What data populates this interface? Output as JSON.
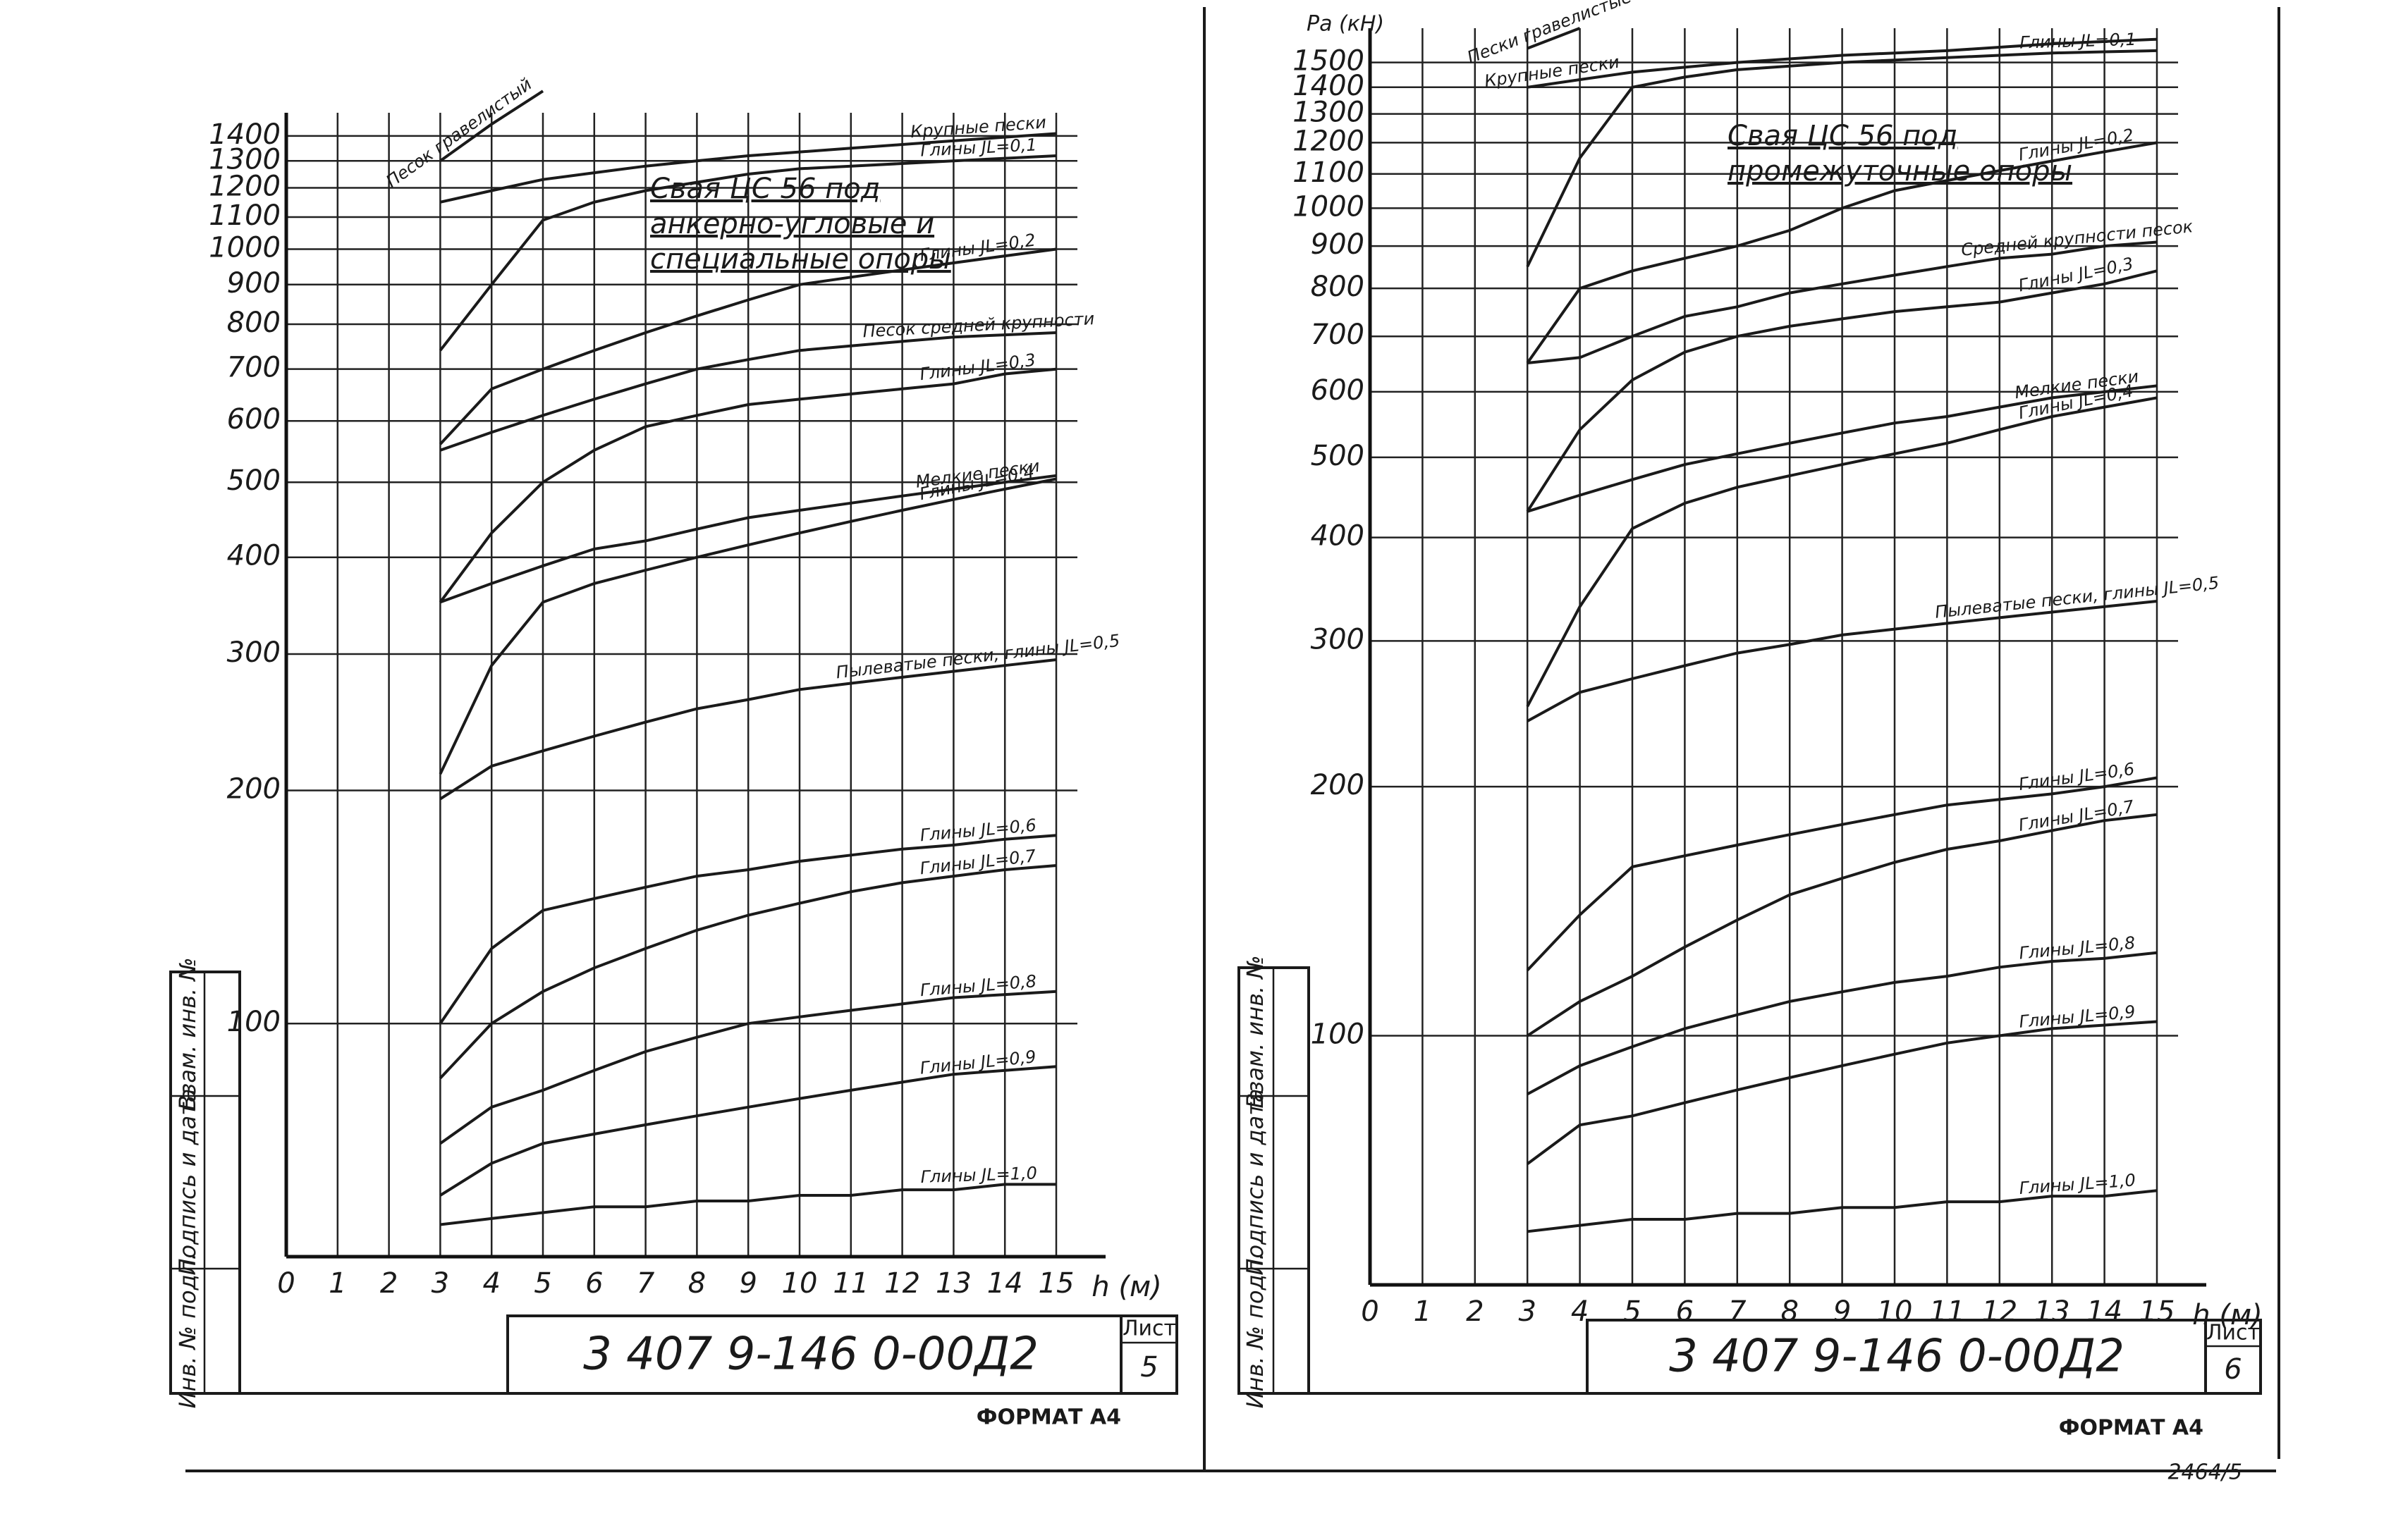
{
  "chart_data": [
    {
      "type": "line",
      "title": [
        "Свая ЦС 56 под",
        "анкерно-угловые и",
        "специальные опоры"
      ],
      "x_label": "h (м)",
      "x": [
        3,
        4,
        5,
        6,
        7,
        8,
        9,
        10,
        11,
        12,
        13,
        14,
        15
      ],
      "xlim": [
        0,
        15
      ],
      "xticks": [
        0,
        1,
        2,
        3,
        4,
        5,
        6,
        7,
        8,
        9,
        10,
        11,
        12,
        13,
        14,
        15
      ],
      "ylim": [
        50,
        1500
      ],
      "yticks": [
        100,
        200,
        300,
        400,
        500,
        600,
        700,
        800,
        900,
        1000,
        1100,
        1200,
        1300,
        1400
      ],
      "log_y": true,
      "grid": true,
      "color": "#1a1a1a",
      "series": [
        {
          "name": "Песок гравелистый",
          "values": [
            1300,
            1450,
            1600,
            null,
            null,
            null,
            null,
            null,
            null,
            null,
            null,
            null,
            null
          ]
        },
        {
          "name": "Крупные пески",
          "values": [
            1150,
            1190,
            1230,
            1255,
            1280,
            1300,
            1320,
            1335,
            1350,
            1365,
            1380,
            1395,
            1410
          ]
        },
        {
          "name": "Глины JL=0,1",
          "values": [
            740,
            900,
            1090,
            1150,
            1190,
            1220,
            1250,
            1270,
            1280,
            1290,
            1300,
            1310,
            1320
          ]
        },
        {
          "name": "Глины JL=0,2",
          "values": [
            560,
            660,
            700,
            740,
            780,
            820,
            860,
            900,
            920,
            940,
            960,
            980,
            1000
          ]
        },
        {
          "name": "Песок средней крупности",
          "values": [
            550,
            580,
            610,
            640,
            670,
            700,
            720,
            740,
            750,
            760,
            770,
            775,
            780
          ]
        },
        {
          "name": "Глины JL=0,3",
          "values": [
            350,
            430,
            500,
            550,
            590,
            610,
            630,
            640,
            650,
            660,
            670,
            690,
            700
          ]
        },
        {
          "name": "Мелкие пески",
          "values": [
            350,
            370,
            390,
            410,
            420,
            435,
            450,
            460,
            470,
            480,
            490,
            500,
            510
          ]
        },
        {
          "name": "Глины JL=0,4",
          "values": [
            210,
            290,
            350,
            370,
            385,
            400,
            415,
            430,
            445,
            460,
            475,
            490,
            505
          ]
        },
        {
          "name": "Пылеватые пески, глины JL=0,5",
          "values": [
            195,
            215,
            225,
            235,
            245,
            255,
            262,
            270,
            275,
            280,
            285,
            290,
            295
          ]
        },
        {
          "name": "Глины JL=0,6",
          "values": [
            100,
            125,
            140,
            145,
            150,
            155,
            158,
            162,
            165,
            168,
            170,
            173,
            175
          ]
        },
        {
          "name": "Глины JL=0,7",
          "values": [
            85,
            100,
            110,
            118,
            125,
            132,
            138,
            143,
            148,
            152,
            155,
            158,
            160
          ]
        },
        {
          "name": "Глины JL=0,8",
          "values": [
            70,
            78,
            82,
            87,
            92,
            96,
            100,
            102,
            104,
            106,
            108,
            109,
            110
          ]
        },
        {
          "name": "Глины JL=0,9",
          "values": [
            60,
            66,
            70,
            72,
            74,
            76,
            78,
            80,
            82,
            84,
            86,
            87,
            88
          ]
        },
        {
          "name": "Глины JL=1,0",
          "values": [
            55,
            56,
            57,
            58,
            58,
            59,
            59,
            60,
            60,
            61,
            61,
            62,
            62
          ]
        }
      ]
    },
    {
      "type": "line",
      "title": [
        "Свая ЦС 56 под",
        "промежуточные опоры"
      ],
      "y_label": "Pa (кН)",
      "x_label": "h (м)",
      "x": [
        3,
        4,
        5,
        6,
        7,
        8,
        9,
        10,
        11,
        12,
        13,
        14,
        15
      ],
      "xlim": [
        0,
        15
      ],
      "xticks": [
        0,
        1,
        2,
        3,
        4,
        5,
        6,
        7,
        8,
        9,
        10,
        11,
        12,
        13,
        14,
        15
      ],
      "ylim": [
        50,
        1650
      ],
      "yticks": [
        100,
        200,
        300,
        400,
        500,
        600,
        700,
        800,
        900,
        1000,
        1100,
        1200,
        1300,
        1400,
        1500
      ],
      "log_y": true,
      "grid": true,
      "color": "#1a1a1a",
      "series": [
        {
          "name": "Пески гравелистые",
          "values": [
            1560,
            1650,
            null,
            null,
            null,
            null,
            null,
            null,
            null,
            null,
            null,
            null,
            null
          ]
        },
        {
          "name": "Крупные пески",
          "values": [
            1400,
            1430,
            1460,
            1480,
            1500,
            1515,
            1530,
            1540,
            1550,
            1565,
            1580,
            1590,
            1600
          ]
        },
        {
          "name": "Глины JL=0,1",
          "values": [
            850,
            1150,
            1400,
            1440,
            1470,
            1485,
            1500,
            1510,
            1520,
            1530,
            1540,
            1545,
            1550
          ]
        },
        {
          "name": "Глины JL=0,2",
          "values": [
            650,
            800,
            840,
            870,
            900,
            940,
            1000,
            1050,
            1080,
            1110,
            1140,
            1170,
            1200
          ]
        },
        {
          "name": "Средней крупности песок",
          "values": [
            650,
            660,
            700,
            740,
            760,
            790,
            810,
            830,
            850,
            870,
            880,
            900,
            910
          ]
        },
        {
          "name": "Глины JL=0,3",
          "values": [
            430,
            540,
            620,
            670,
            700,
            720,
            735,
            750,
            760,
            770,
            790,
            810,
            840
          ]
        },
        {
          "name": "Мелкие пески",
          "values": [
            430,
            450,
            470,
            490,
            505,
            520,
            535,
            550,
            560,
            575,
            590,
            600,
            610
          ]
        },
        {
          "name": "Глины JL=0,4",
          "values": [
            250,
            330,
            410,
            440,
            460,
            475,
            490,
            505,
            520,
            540,
            560,
            575,
            590
          ]
        },
        {
          "name": "Пылеватые пески, глины JL=0,5",
          "values": [
            240,
            260,
            270,
            280,
            290,
            297,
            305,
            310,
            315,
            320,
            325,
            330,
            335
          ]
        },
        {
          "name": "Глины JL=0,6",
          "values": [
            120,
            140,
            160,
            165,
            170,
            175,
            180,
            185,
            190,
            193,
            196,
            200,
            205
          ]
        },
        {
          "name": "Глины JL=0,7",
          "values": [
            100,
            110,
            118,
            128,
            138,
            148,
            155,
            162,
            168,
            172,
            177,
            182,
            185
          ]
        },
        {
          "name": "Глины JL=0,8",
          "values": [
            85,
            92,
            97,
            102,
            106,
            110,
            113,
            116,
            118,
            121,
            123,
            124,
            126
          ]
        },
        {
          "name": "Глины JL=0,9",
          "values": [
            70,
            78,
            80,
            83,
            86,
            89,
            92,
            95,
            98,
            100,
            102,
            103,
            104
          ]
        },
        {
          "name": "Глины JL=1,0",
          "values": [
            58,
            59,
            60,
            60,
            61,
            61,
            62,
            62,
            63,
            63,
            64,
            64,
            65
          ]
        }
      ]
    }
  ],
  "frame": {
    "sheets": [
      {
        "code": "3 407 9-146 0-00Д2",
        "sheet_label": "Лист",
        "sheet_no": "5",
        "format": "ФОРМАТ А4",
        "side": [
          "Взам. инв. №",
          "Подпись и дата",
          "Инв. № подл."
        ]
      },
      {
        "code": "3 407 9-146 0-00Д2",
        "sheet_label": "Лист",
        "sheet_no": "6",
        "format": "ФОРМАТ А4",
        "side": [
          "Взам. инв. №",
          "Подпись и дата",
          "Инв. № подл."
        ]
      }
    ],
    "archive_no": "2464/5"
  }
}
